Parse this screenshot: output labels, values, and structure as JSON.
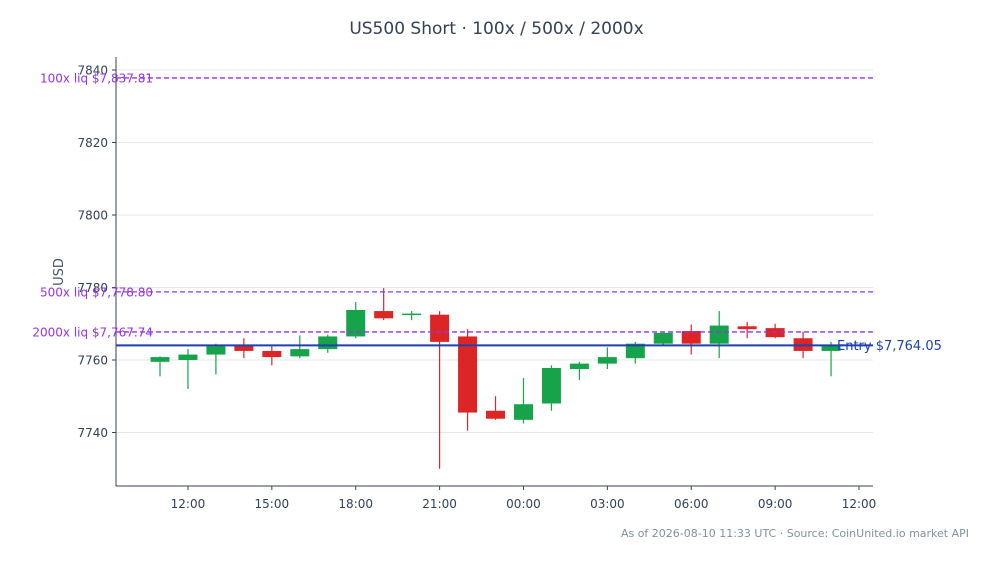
{
  "chart_data": {
    "type": "candlestick",
    "title": "US500 Short · 100x / 500x / 2000x",
    "ylabel": "USD",
    "xlabel": "",
    "ylim": [
      7725,
      7844
    ],
    "grid": "horizontal",
    "x_ticks": [
      "12:00",
      "15:00",
      "18:00",
      "21:00",
      "00:00",
      "03:00",
      "06:00",
      "09:00",
      "12:00"
    ],
    "y_ticks": [
      7740,
      7760,
      7780,
      7800,
      7820,
      7840
    ],
    "time_step_hours": 1,
    "up_color": "#16a34a",
    "down_color": "#dc2626",
    "candles": [
      {
        "o": 7759.5,
        "h": 7761.0,
        "l": 7755.5,
        "c": 7760.8
      },
      {
        "o": 7760.0,
        "h": 7763.0,
        "l": 7752.0,
        "c": 7761.5
      },
      {
        "o": 7761.5,
        "h": 7764.5,
        "l": 7756.0,
        "c": 7763.8
      },
      {
        "o": 7764.0,
        "h": 7766.0,
        "l": 7760.5,
        "c": 7762.5
      },
      {
        "o": 7762.5,
        "h": 7764.0,
        "l": 7758.5,
        "c": 7760.8
      },
      {
        "o": 7761.0,
        "h": 7766.8,
        "l": 7760.5,
        "c": 7763.0
      },
      {
        "o": 7763.0,
        "h": 7767.0,
        "l": 7762.0,
        "c": 7766.5
      },
      {
        "o": 7766.5,
        "h": 7776.0,
        "l": 7766.0,
        "c": 7773.8
      },
      {
        "o": 7773.5,
        "h": 7779.8,
        "l": 7771.0,
        "c": 7771.5
      },
      {
        "o": 7772.5,
        "h": 7773.5,
        "l": 7771.0,
        "c": 7772.8
      },
      {
        "o": 7772.5,
        "h": 7773.5,
        "l": 7730.0,
        "c": 7765.0
      },
      {
        "o": 7766.5,
        "h": 7768.5,
        "l": 7740.5,
        "c": 7745.5
      },
      {
        "o": 7746.0,
        "h": 7750.0,
        "l": 7743.5,
        "c": 7743.8
      },
      {
        "o": 7743.5,
        "h": 7755.0,
        "l": 7742.5,
        "c": 7747.8
      },
      {
        "o": 7748.0,
        "h": 7758.5,
        "l": 7746.0,
        "c": 7757.8
      },
      {
        "o": 7757.5,
        "h": 7759.5,
        "l": 7754.5,
        "c": 7759.0
      },
      {
        "o": 7759.0,
        "h": 7763.5,
        "l": 7757.5,
        "c": 7760.8
      },
      {
        "o": 7760.5,
        "h": 7765.0,
        "l": 7759.0,
        "c": 7764.5
      },
      {
        "o": 7764.5,
        "h": 7767.5,
        "l": 7764.0,
        "c": 7767.5
      },
      {
        "o": 7768.0,
        "h": 7769.8,
        "l": 7761.5,
        "c": 7764.5
      },
      {
        "o": 7764.5,
        "h": 7773.5,
        "l": 7760.5,
        "c": 7769.5
      },
      {
        "o": 7769.3,
        "h": 7770.5,
        "l": 7766.0,
        "c": 7768.5
      },
      {
        "o": 7768.8,
        "h": 7770.0,
        "l": 7766.0,
        "c": 7766.3
      },
      {
        "o": 7766.0,
        "h": 7767.8,
        "l": 7760.5,
        "c": 7762.5
      },
      {
        "o": 7762.5,
        "h": 7765.0,
        "l": 7755.5,
        "c": 7764.0
      }
    ],
    "reference_lines": [
      {
        "label": "Entry $7,764.05",
        "value": 7764.05,
        "color": "#1e40af",
        "style": "solid"
      },
      {
        "label": "100x liq $7,837.81",
        "value": 7837.81,
        "color": "#9333ea",
        "style": "dashed"
      },
      {
        "label": "500x liq $7,778.80",
        "value": 7778.8,
        "color": "#9333ea",
        "style": "dashed"
      },
      {
        "label": "2000x liq $7,767.74",
        "value": 7767.74,
        "color": "#9333ea",
        "style": "dashed"
      }
    ]
  },
  "footer": "As of 2026-08-10 11:33 UTC · Source: CoinUnited.io market API"
}
